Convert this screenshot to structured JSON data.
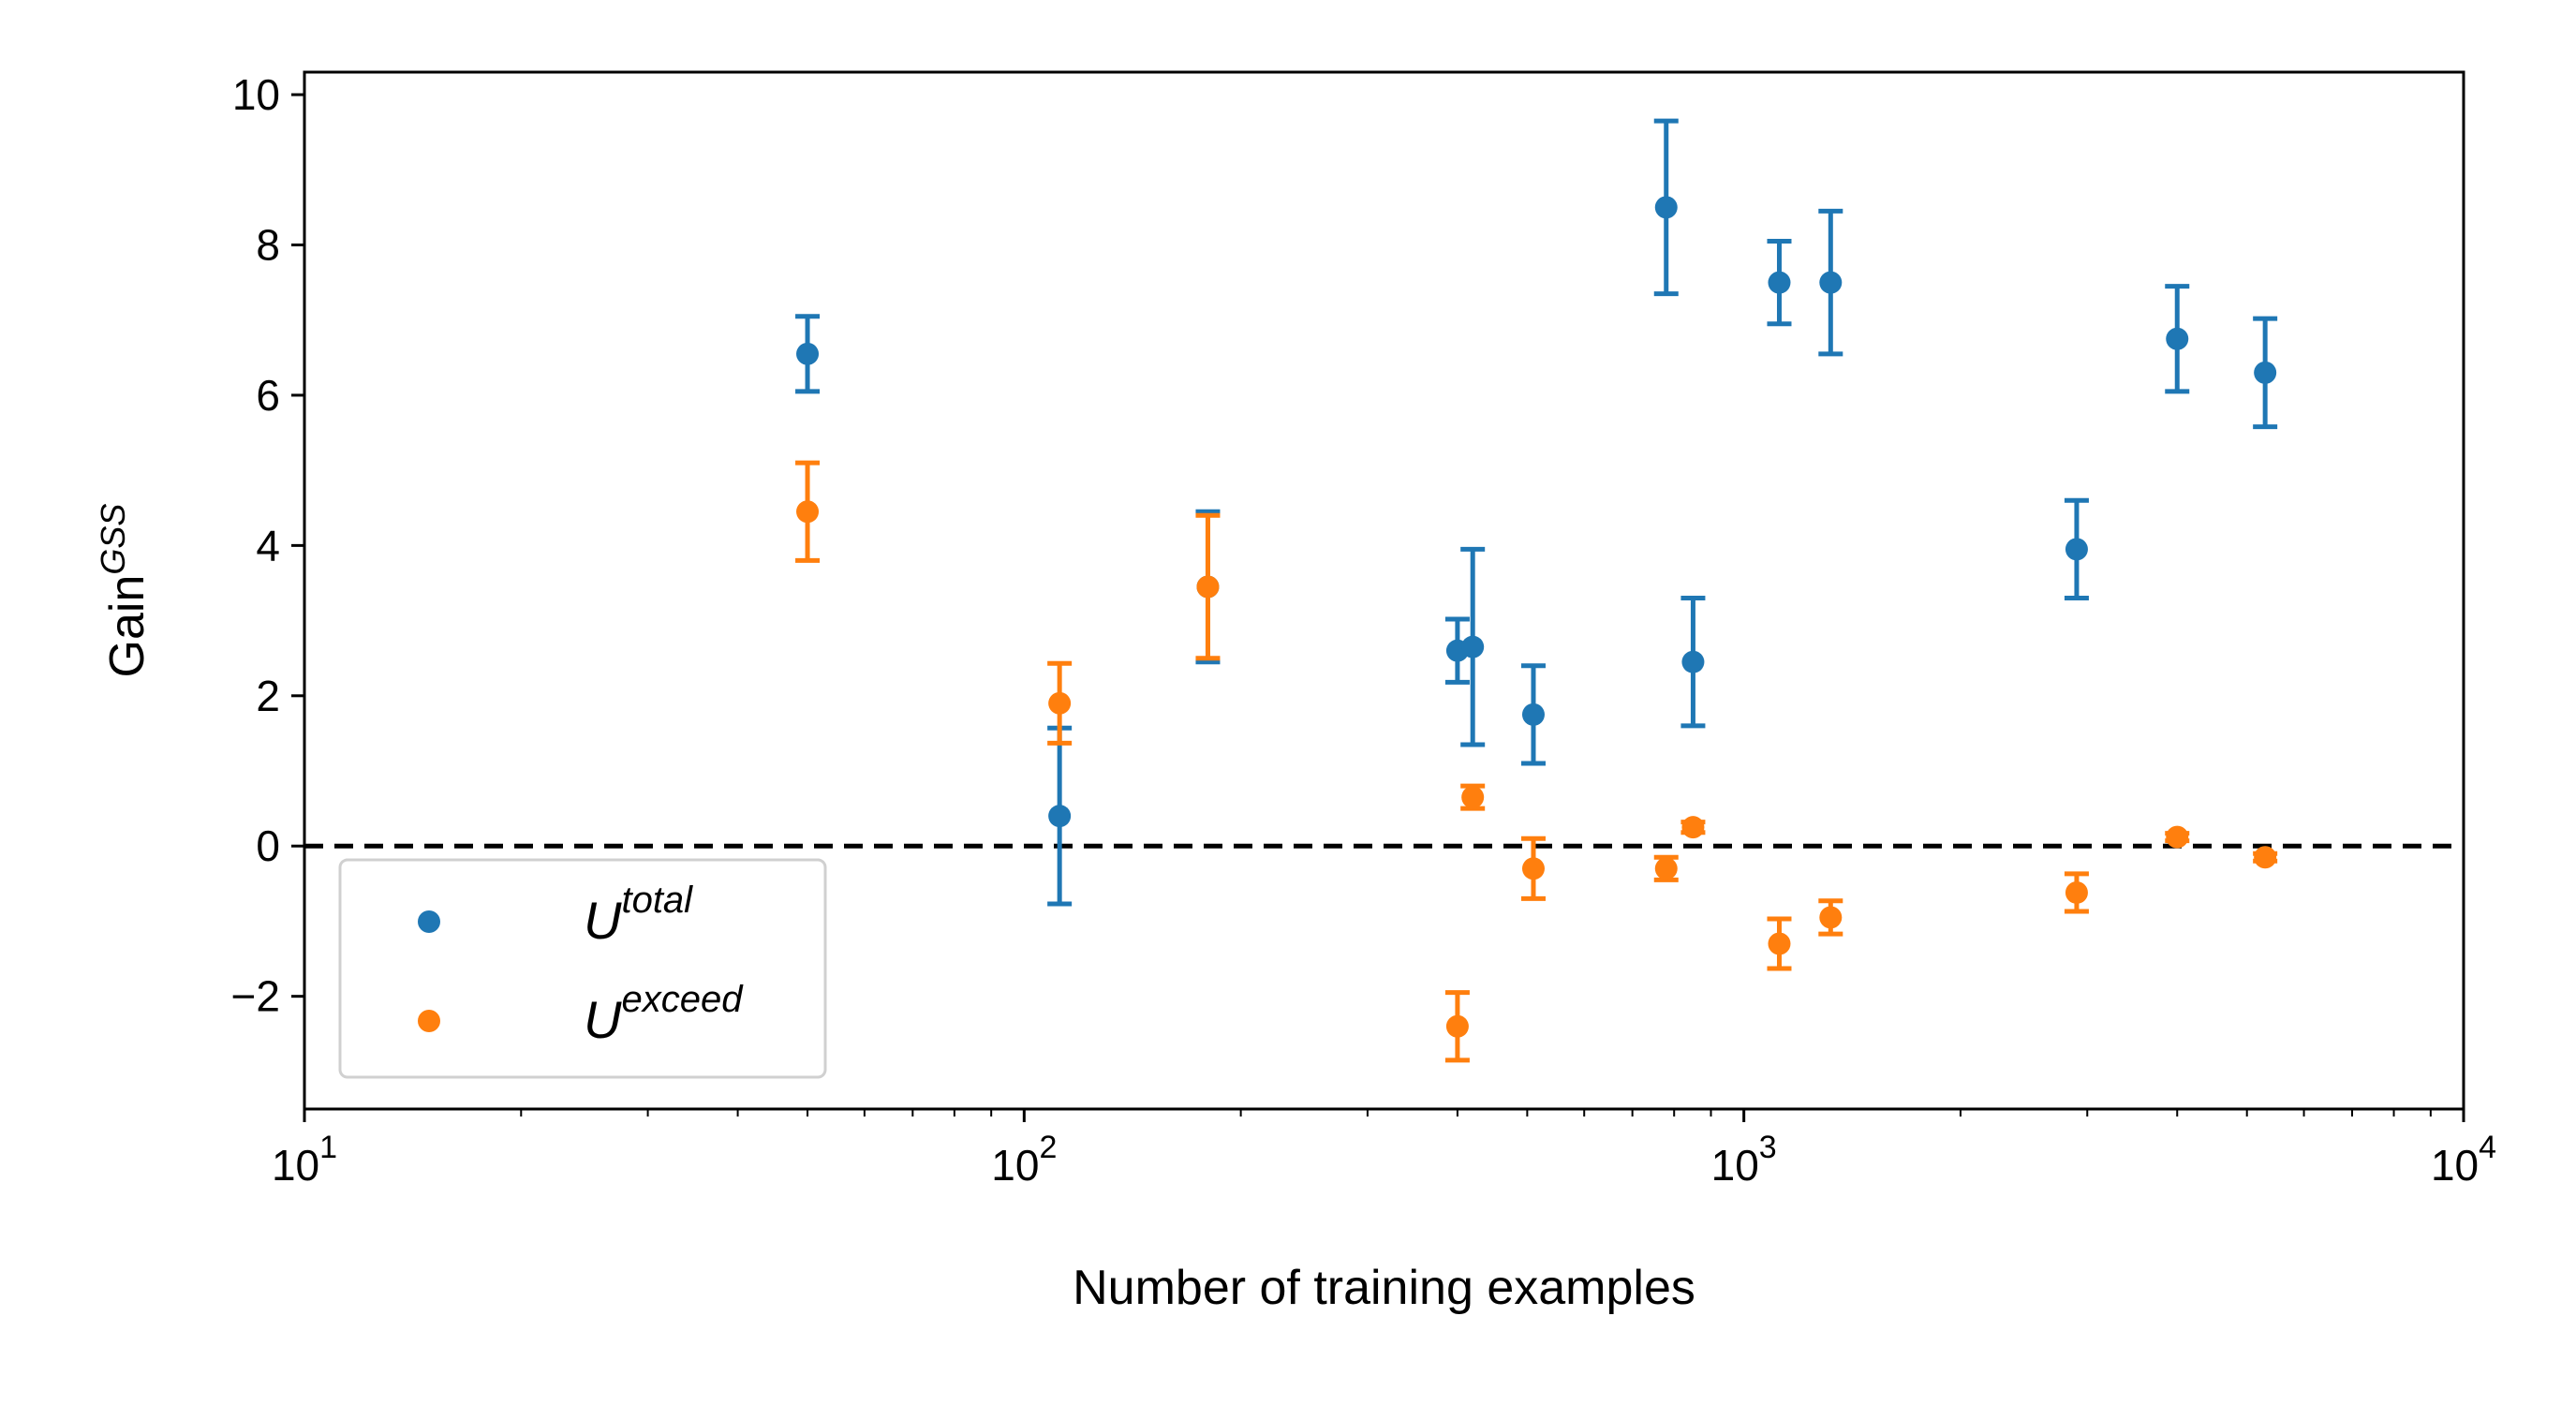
{
  "chart_data": {
    "type": "scatter",
    "xscale": "log",
    "xlim": [
      10,
      10000
    ],
    "ylim": [
      -3.5,
      10.3
    ],
    "xlabel": "Number of training examples",
    "ylabel": {
      "base": "Gain",
      "sup": "GSS"
    },
    "x_ticks": [
      {
        "value": 10,
        "base": "10",
        "exp": "1"
      },
      {
        "value": 100,
        "base": "10",
        "exp": "2"
      },
      {
        "value": 1000,
        "base": "10",
        "exp": "3"
      },
      {
        "value": 10000,
        "base": "10",
        "exp": "4"
      }
    ],
    "y_ticks": [
      {
        "value": -2,
        "label": "−2"
      },
      {
        "value": 0,
        "label": "0"
      },
      {
        "value": 2,
        "label": "2"
      },
      {
        "value": 4,
        "label": "4"
      },
      {
        "value": 6,
        "label": "6"
      },
      {
        "value": 8,
        "label": "8"
      },
      {
        "value": 10,
        "label": "10"
      }
    ],
    "reference_line": {
      "y": 0,
      "style": "dashed",
      "color": "#000000"
    },
    "legend": {
      "placement": "lower-left"
    },
    "series": [
      {
        "name": "total",
        "label": {
          "base": "U",
          "sup": "total"
        },
        "color": "#1f77b4",
        "points": [
          {
            "x": 50,
            "y": 6.55,
            "err": 0.5
          },
          {
            "x": 112,
            "y": 0.4,
            "err": 1.17
          },
          {
            "x": 180,
            "y": 3.45,
            "err": 1.0
          },
          {
            "x": 400,
            "y": 2.6,
            "err": 0.42
          },
          {
            "x": 420,
            "y": 2.65,
            "err": 1.3
          },
          {
            "x": 510,
            "y": 1.75,
            "err": 0.65
          },
          {
            "x": 780,
            "y": 8.5,
            "err": 1.15
          },
          {
            "x": 850,
            "y": 2.45,
            "err": 0.85
          },
          {
            "x": 1120,
            "y": 7.5,
            "err": 0.55
          },
          {
            "x": 1320,
            "y": 7.5,
            "err": 0.95
          },
          {
            "x": 2900,
            "y": 3.95,
            "err": 0.65
          },
          {
            "x": 4000,
            "y": 6.75,
            "err": 0.7
          },
          {
            "x": 5300,
            "y": 6.3,
            "err": 0.72
          }
        ]
      },
      {
        "name": "exceed",
        "label": {
          "base": "U",
          "sup": "exceed"
        },
        "color": "#ff7f0e",
        "points": [
          {
            "x": 50,
            "y": 4.45,
            "err": 0.65
          },
          {
            "x": 112,
            "y": 1.9,
            "err": 0.53
          },
          {
            "x": 180,
            "y": 3.45,
            "err": 0.95
          },
          {
            "x": 400,
            "y": -2.4,
            "err": 0.45
          },
          {
            "x": 420,
            "y": 0.65,
            "err": 0.15
          },
          {
            "x": 510,
            "y": -0.3,
            "err": 0.4
          },
          {
            "x": 780,
            "y": -0.3,
            "err": 0.15
          },
          {
            "x": 850,
            "y": 0.25,
            "err": 0.07
          },
          {
            "x": 1120,
            "y": -1.3,
            "err": 0.33
          },
          {
            "x": 1320,
            "y": -0.95,
            "err": 0.22
          },
          {
            "x": 2900,
            "y": -0.62,
            "err": 0.25
          },
          {
            "x": 4000,
            "y": 0.12,
            "err": 0.05
          },
          {
            "x": 5300,
            "y": -0.15,
            "err": 0.05
          }
        ]
      }
    ]
  }
}
